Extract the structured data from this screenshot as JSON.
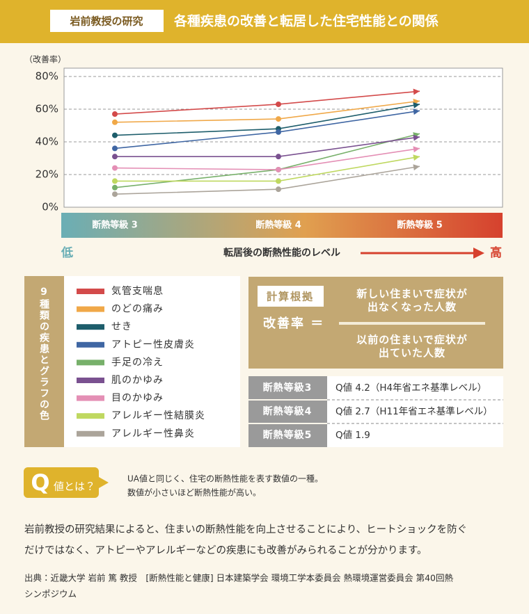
{
  "header": {
    "tag": "岩前教授の研究",
    "title": "各種疾患の改善と転居した住宅性能との関係"
  },
  "chart_data": {
    "type": "line",
    "y_label": "（改善率）",
    "categories": [
      "断熱等級 3",
      "断熱等級 4",
      "断熱等級 5"
    ],
    "series": [
      {
        "name": "気管支喘息",
        "color": "#d34a4a",
        "values": [
          57,
          63,
          71
        ]
      },
      {
        "name": "のどの痛み",
        "color": "#f0a848",
        "values": [
          52,
          54,
          65
        ]
      },
      {
        "name": "せき",
        "color": "#1d5d6b",
        "values": [
          44,
          48,
          63
        ]
      },
      {
        "name": "アトピー性皮膚炎",
        "color": "#3f66a3",
        "values": [
          36,
          46,
          59
        ]
      },
      {
        "name": "手足の冷え",
        "color": "#77b06a",
        "values": [
          12,
          23,
          45
        ]
      },
      {
        "name": "肌のかゆみ",
        "color": "#7a5190",
        "values": [
          31,
          31,
          43
        ]
      },
      {
        "name": "目のかゆみ",
        "color": "#e48fb5",
        "values": [
          24,
          23,
          36
        ]
      },
      {
        "name": "アレルギー性結膜炎",
        "color": "#bfd860",
        "values": [
          16,
          16,
          31
        ]
      },
      {
        "name": "アレルギー性鼻炎",
        "color": "#aba49a",
        "values": [
          8,
          11,
          25
        ]
      }
    ],
    "ylim": [
      0,
      80
    ],
    "yticks": [
      {
        "value": 0,
        "label": "0%"
      },
      {
        "value": 20,
        "label": "20%"
      },
      {
        "value": 40,
        "label": "40%"
      },
      {
        "value": 60,
        "label": "60%"
      },
      {
        "value": 80,
        "label": "80%"
      }
    ],
    "grid": true
  },
  "scale": {
    "low": "低",
    "label": "転居後の断熱性能のレベル",
    "high": "高"
  },
  "legend_title": "9種類の疾患とグラフの色",
  "formula": {
    "tag": "計算根拠",
    "lhs": "改善率 ＝",
    "numerator": [
      "新しい住まいで症状が",
      "出なくなった人数"
    ],
    "denominator": [
      "以前の住まいで症状が",
      "出ていた人数"
    ]
  },
  "grades": [
    [
      "断熱等級3",
      "Q値 4.2（H4年省エネ基準レベル）"
    ],
    [
      "断熱等級4",
      "Q値 2.7（H11年省エネ基準レベル）"
    ],
    [
      "断熱等級5",
      "Q値 1.9"
    ]
  ],
  "q": {
    "badge": "Q",
    "badge_text": "値とは？",
    "lines": [
      "UA値と同じく、住宅の断熱性能を表す数値の一種。",
      "数値が小さいほど断熱性能が高い。"
    ]
  },
  "body": [
    "岩前教授の研究結果によると、住まいの断熱性能を向上させることにより、ヒートショックを防ぐ",
    "だけではなく、アトピーやアレルギーなどの疾患にも改善がみられることが分かります。"
  ],
  "source": [
    "出典：近畿大学 岩前 篤 教授　[断熱性能と健康] 日本建築学会 環境工学本委員会 熱環境運営委員会 第40回熱",
    "シンポジウム"
  ]
}
